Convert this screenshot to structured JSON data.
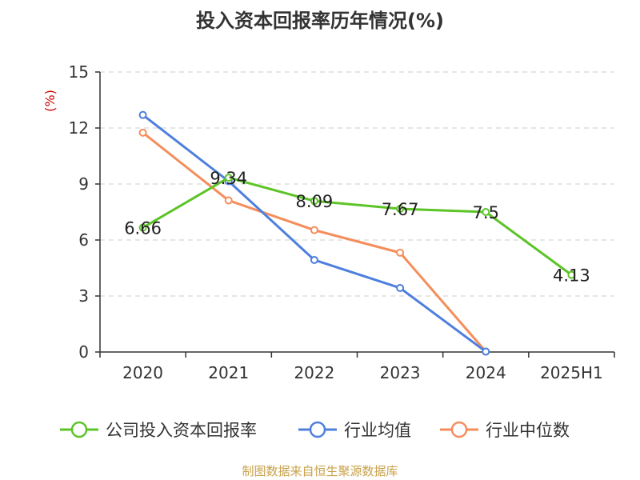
{
  "chart_data": {
    "type": "line",
    "title": "投入资本回报率历年情况(%)",
    "ylabel": "(%)",
    "categories": [
      "2020",
      "2021",
      "2022",
      "2023",
      "2024",
      "2025H1"
    ],
    "yticks": [
      "0",
      "3",
      "6",
      "9",
      "12",
      "15"
    ],
    "ylim": [
      0,
      15
    ],
    "grid": true,
    "legend_position": "bottom",
    "series": [
      {
        "name": "公司投入资本回报率",
        "color": "#5cc426",
        "values": [
          6.66,
          9.34,
          8.09,
          7.67,
          7.5,
          4.13
        ],
        "labels": [
          "6.66",
          "9.34",
          "8.09",
          "7.67",
          "7.5",
          "4.13"
        ]
      },
      {
        "name": "行业均值",
        "color": "#4e7fde",
        "values": [
          12.7,
          9.15,
          4.93,
          3.43,
          0.02,
          null
        ]
      },
      {
        "name": "行业中位数",
        "color": "#f58d5b",
        "values": [
          11.75,
          8.12,
          6.53,
          5.32,
          0.02,
          null
        ]
      }
    ]
  },
  "source": "制图数据来自恒生聚源数据库",
  "colors": {
    "axis": "#333333",
    "grid": "#cccccc",
    "ylabel": "#cc0000",
    "source": "#c8a14a"
  }
}
